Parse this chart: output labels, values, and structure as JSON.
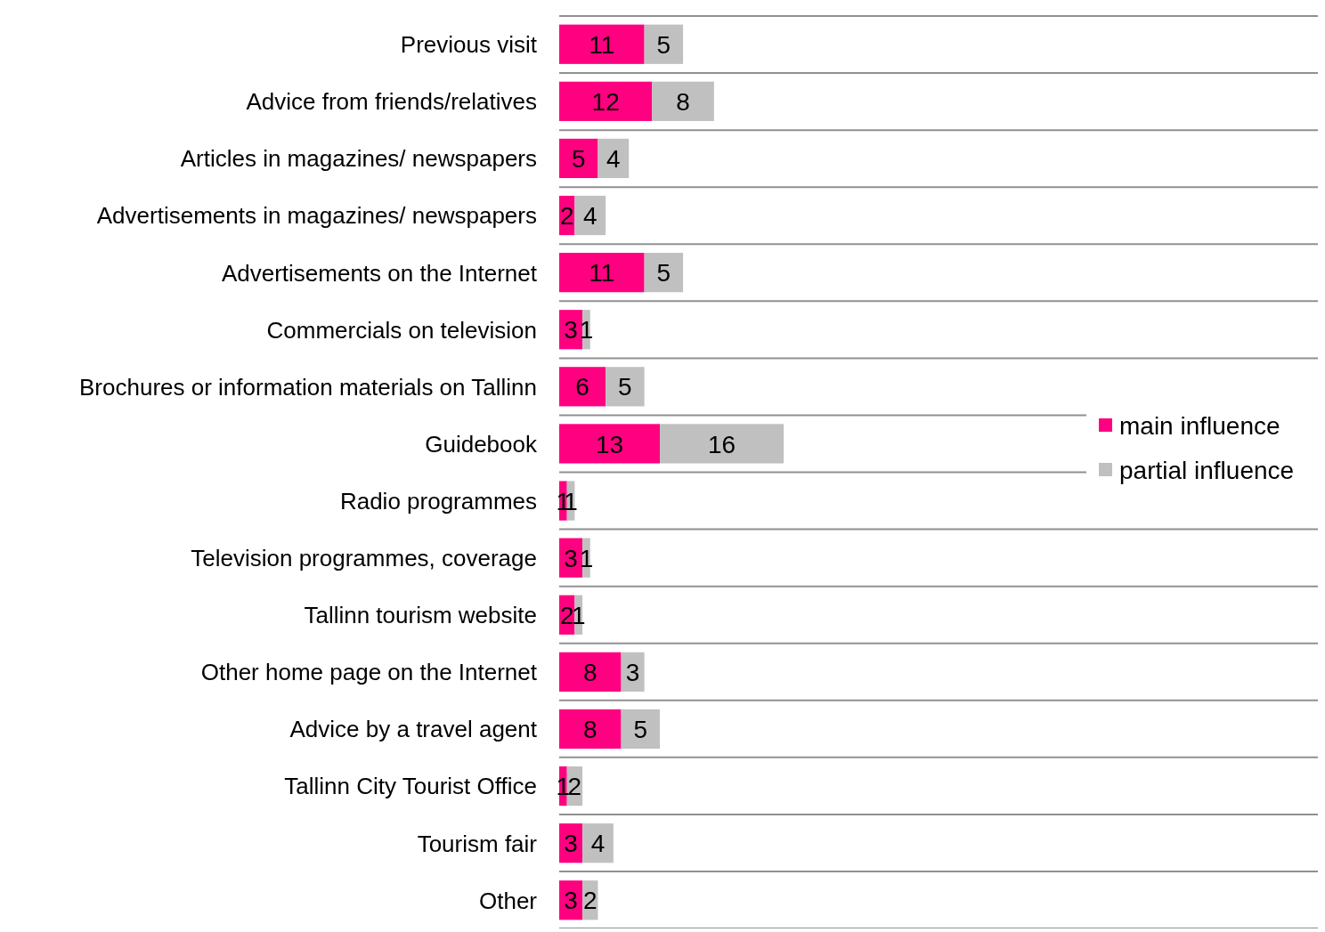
{
  "chart_data": {
    "type": "bar",
    "orientation": "horizontal",
    "stacked": true,
    "data_labels": true,
    "grid": "y",
    "legend": "right",
    "xlim": [
      0,
      98
    ],
    "categories": [
      "Previous visit",
      "Advice from friends/relatives",
      "Articles in magazines/ newspapers",
      "Advertisements in magazines/ newspapers",
      "Advertisements on the Internet",
      "Commercials on television",
      "Brochures or information materials on Tallinn",
      "Guidebook",
      "Radio programmes",
      "Television programmes, coverage",
      "Tallinn tourism website",
      "Other home page on the Internet",
      "Advice by a travel agent",
      "Tallinn City Tourist Office",
      "Tourism fair",
      "Other"
    ],
    "series": [
      {
        "name": "main influence",
        "color": "#ff0080",
        "values": [
          11,
          12,
          5,
          2,
          11,
          3,
          6,
          13,
          1,
          3,
          2,
          8,
          8,
          1,
          3,
          3
        ]
      },
      {
        "name": "partial influence",
        "color": "#c0c0c0",
        "values": [
          5,
          8,
          4,
          4,
          5,
          1,
          5,
          16,
          1,
          1,
          1,
          3,
          5,
          2,
          4,
          2
        ]
      }
    ]
  }
}
